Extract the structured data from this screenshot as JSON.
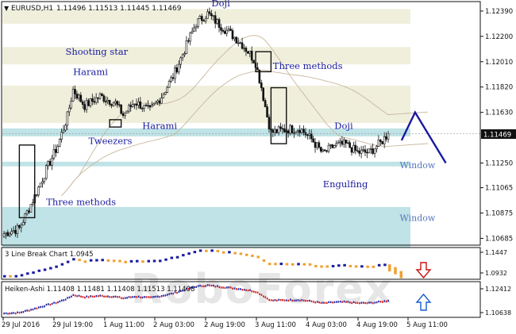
{
  "header": {
    "symbol_label": "EURUSD,H1",
    "quote": "1.11496 1.11513 1.11445 1.11469"
  },
  "watermark": "RoboForex",
  "colors": {
    "zone_beige": "#efefdc",
    "zone_cyan": "#bfe3e6",
    "bull": "#111111",
    "bear": "#111111",
    "accent_blue": "#1a1aa0",
    "label_blue": "#5577bb",
    "ma_brown": "#c9b79c",
    "break_orange": "#f0a030",
    "break_blue": "#1a1aa0",
    "ha_red": "#cc1111",
    "ha_blue": "#1a1aa0",
    "arrow_red": "#cc1111",
    "arrow_blue": "#1a5ecc"
  },
  "chart_data": [
    {
      "type": "candlestick",
      "title": "EURUSD,H1 1.11496 1.11513 1.11445 1.11469",
      "current_price": 1.11469,
      "ylim": [
        1.1063,
        1.1245
      ],
      "y_ticks": [
        "1.12390",
        "1.12200",
        "1.12010",
        "1.11820",
        "1.11630",
        "1.11469",
        "1.11250",
        "1.11065",
        "1.10875",
        "1.10685"
      ],
      "zones": [
        {
          "kind": "beige",
          "from": 1.12295,
          "to": 1.12405
        },
        {
          "kind": "beige",
          "from": 1.1199,
          "to": 1.1212
        },
        {
          "kind": "beige",
          "from": 1.1155,
          "to": 1.1183
        },
        {
          "kind": "cyan",
          "from": 1.1145,
          "to": 1.1151
        },
        {
          "kind": "cyan",
          "from": 1.11225,
          "to": 1.1126
        },
        {
          "kind": "cyan",
          "from": 1.10615,
          "to": 1.1092
        }
      ],
      "price_path": [
        [
          0,
          1.1072
        ],
        [
          8,
          1.1076
        ],
        [
          16,
          1.11
        ],
        [
          22,
          1.112
        ],
        [
          28,
          1.1138
        ],
        [
          33,
          1.116
        ],
        [
          36,
          1.118
        ],
        [
          42,
          1.1168
        ],
        [
          50,
          1.1175
        ],
        [
          58,
          1.117
        ],
        [
          62,
          1.1161
        ],
        [
          68,
          1.1171
        ],
        [
          76,
          1.1164
        ],
        [
          82,
          1.1175
        ],
        [
          88,
          1.119
        ],
        [
          94,
          1.121
        ],
        [
          100,
          1.123
        ],
        [
          106,
          1.1237
        ],
        [
          112,
          1.1229
        ],
        [
          118,
          1.1222
        ],
        [
          124,
          1.1214
        ],
        [
          128,
          1.1207
        ],
        [
          131,
          1.12
        ],
        [
          134,
          1.1182
        ],
        [
          137,
          1.116
        ],
        [
          139,
          1.1148
        ],
        [
          146,
          1.115
        ],
        [
          154,
          1.1151
        ],
        [
          160,
          1.1143
        ],
        [
          166,
          1.1132
        ],
        [
          172,
          1.1138
        ],
        [
          178,
          1.1139
        ],
        [
          184,
          1.1133
        ],
        [
          190,
          1.1133
        ],
        [
          196,
          1.114
        ],
        [
          200,
          1.1147
        ]
      ],
      "annotations": [
        {
          "text": "Doji",
          "x": 108,
          "price": 1.12448
        },
        {
          "text": "Shooting star",
          "x": 32,
          "price": 1.12085
        },
        {
          "text": "Harami",
          "x": 36,
          "price": 1.11933
        },
        {
          "text": "Three methods",
          "x": 140,
          "price": 1.11978
        },
        {
          "text": "Harami",
          "x": 72,
          "price": 1.11531
        },
        {
          "text": "Tweezers",
          "x": 44,
          "price": 1.11416
        },
        {
          "text": "Doji",
          "x": 172,
          "price": 1.11531
        },
        {
          "text": "Window",
          "x": 206,
          "price": 1.11235
        },
        {
          "text": "Engulfing",
          "x": 166,
          "price": 1.11091
        },
        {
          "text": "Three methods",
          "x": 22,
          "price": 1.10957
        },
        {
          "text": "Window",
          "x": 206,
          "price": 1.10838
        }
      ],
      "forecast_path": [
        [
          207,
          1.1142
        ],
        [
          214,
          1.1163
        ],
        [
          230,
          1.1125
        ]
      ]
    },
    {
      "type": "indicator",
      "title": "3 Line Break Chart",
      "label": "3 Line Break Chart 1.0945",
      "value": 1.0945,
      "y_ticks": [
        "1.1447",
        "1.0932"
      ],
      "signal": "down"
    },
    {
      "type": "indicator",
      "title": "Heiken-Ashi",
      "label": "Heiken-Ashi 1.11408 1.11481 1.11408 1.11513 1.11408",
      "y_ticks": [
        "1.12412",
        "1.10638"
      ],
      "signal": "up"
    }
  ],
  "x_axis": {
    "labels": [
      "29 Jul 2016",
      "29 Jul 19:00",
      "1 Aug 11:00",
      "2 Aug 03:00",
      "2 Aug 19:00",
      "3 Aug 11:00",
      "4 Aug 03:00",
      "4 Aug 19:00",
      "5 Aug 11:00"
    ]
  }
}
